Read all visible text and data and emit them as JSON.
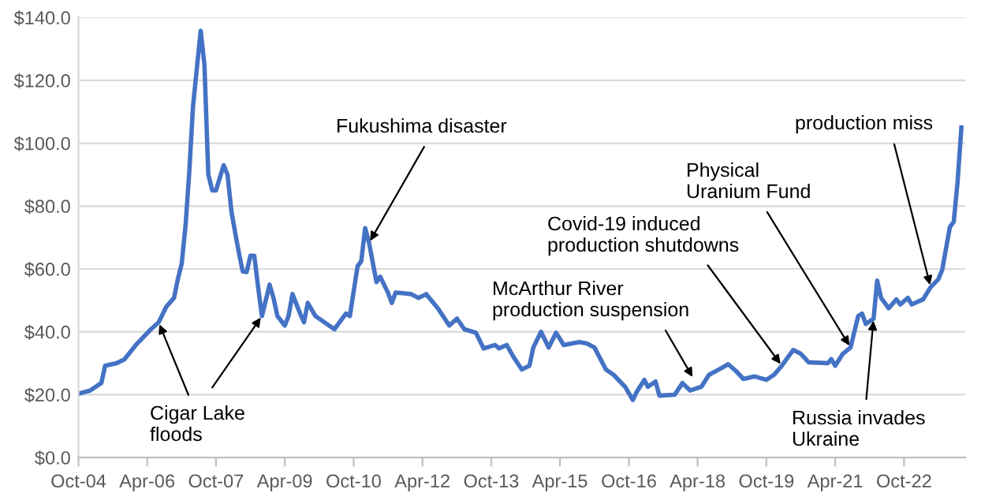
{
  "chart_data": {
    "type": "line",
    "x": [
      "2004-10",
      "2005-01",
      "2005-04",
      "2005-05",
      "2005-08",
      "2005-10",
      "2006-01",
      "2006-05",
      "2006-07",
      "2006-09",
      "2006-11",
      "2006-12",
      "2007-01",
      "2007-02",
      "2007-03",
      "2007-04",
      "2007-06",
      "2007-07",
      "2007-08",
      "2007-09",
      "2007-10",
      "2007-12",
      "2008-01",
      "2008-02",
      "2008-03",
      "2008-04",
      "2008-05",
      "2008-06",
      "2008-07",
      "2008-08",
      "2008-09",
      "2008-10",
      "2008-12",
      "2009-01",
      "2009-02",
      "2009-04",
      "2009-05",
      "2009-06",
      "2009-08",
      "2009-09",
      "2009-10",
      "2009-12",
      "2010-03",
      "2010-05",
      "2010-08",
      "2010-09",
      "2010-11",
      "2010-12",
      "2011-01",
      "2011-02",
      "2011-04",
      "2011-05",
      "2011-07",
      "2011-08",
      "2011-09",
      "2012-01",
      "2012-03",
      "2012-05",
      "2012-08",
      "2012-11",
      "2013-01",
      "2013-03",
      "2013-06",
      "2013-08",
      "2013-11",
      "2013-12",
      "2014-02",
      "2014-04",
      "2014-06",
      "2014-08",
      "2014-09",
      "2014-11",
      "2015-01",
      "2015-03",
      "2015-05",
      "2015-09",
      "2015-11",
      "2016-01",
      "2016-04",
      "2016-06",
      "2016-09",
      "2016-11",
      "2016-12",
      "2017-02",
      "2017-03",
      "2017-05",
      "2017-06",
      "2017-10",
      "2017-12",
      "2018-02",
      "2018-05",
      "2018-07",
      "2018-10",
      "2018-12",
      "2019-02",
      "2019-04",
      "2019-07",
      "2019-10",
      "2019-12",
      "2020-02",
      "2020-05",
      "2020-07",
      "2020-09",
      "2021-02",
      "2021-03",
      "2021-04",
      "2021-06",
      "2021-08",
      "2021-10",
      "2021-11",
      "2021-12",
      "2022-02",
      "2022-03",
      "2022-04",
      "2022-06",
      "2022-08",
      "2022-09",
      "2022-11",
      "2022-12",
      "2023-03",
      "2023-05",
      "2023-07",
      "2023-08",
      "2023-10",
      "2023-11",
      "2023-12",
      "2024-01"
    ],
    "series": [
      {
        "color": "#4472c4",
        "values": [
          20.3,
          21.3,
          23.7,
          29.2,
          30,
          31.2,
          35.8,
          40.8,
          43,
          48,
          50.8,
          56.7,
          61.7,
          74,
          90,
          111.7,
          135.8,
          125,
          90,
          85,
          85,
          93,
          90,
          78.3,
          71.7,
          65,
          59.2,
          59,
          64.2,
          64.2,
          54,
          45,
          55,
          50.8,
          45,
          42,
          45,
          52,
          45.8,
          43,
          49.2,
          45,
          42.5,
          40.8,
          45.8,
          45,
          60.8,
          62.5,
          73,
          68.3,
          55.8,
          57.5,
          52.5,
          49.2,
          52.5,
          52,
          50.8,
          52,
          47.5,
          42,
          44.2,
          40.8,
          39.7,
          34.7,
          35.8,
          34.7,
          35.8,
          31.7,
          28,
          29.2,
          35,
          40,
          35,
          39.7,
          35.8,
          36.7,
          36.3,
          35,
          28,
          26.3,
          22.5,
          18.3,
          20.8,
          24.7,
          22.5,
          24.2,
          19.7,
          20,
          23.7,
          21.3,
          22.5,
          26.3,
          28.3,
          29.7,
          27.5,
          25,
          25.8,
          24.7,
          26.3,
          29.2,
          34.2,
          33,
          30.3,
          30,
          31.3,
          29.2,
          33,
          35,
          45,
          45.8,
          42.5,
          44.2,
          56.3,
          50.8,
          47.5,
          50.3,
          48.7,
          50.8,
          48.7,
          50.3,
          54.2,
          56.7,
          59.7,
          73.3,
          75,
          87.5,
          105
        ]
      }
    ],
    "xlim": [
      "2004-10",
      "2024-02"
    ],
    "xticks": [
      {
        "value": "2004-10",
        "label": "Oct-04"
      },
      {
        "value": "2006-04",
        "label": "Apr-06"
      },
      {
        "value": "2007-10",
        "label": "Oct-07"
      },
      {
        "value": "2009-04",
        "label": "Apr-09"
      },
      {
        "value": "2010-10",
        "label": "Oct-10"
      },
      {
        "value": "2012-04",
        "label": "Apr-12"
      },
      {
        "value": "2013-10",
        "label": "Oct-13"
      },
      {
        "value": "2015-04",
        "label": "Apr-15"
      },
      {
        "value": "2016-10",
        "label": "Oct-16"
      },
      {
        "value": "2018-04",
        "label": "Apr-18"
      },
      {
        "value": "2019-10",
        "label": "Oct-19"
      },
      {
        "value": "2021-04",
        "label": "Apr-21"
      },
      {
        "value": "2022-10",
        "label": "Oct-22"
      }
    ],
    "ylim": [
      0,
      140
    ],
    "yticks": [
      {
        "value": 0,
        "label": "$0.0"
      },
      {
        "value": 20,
        "label": "$20.0"
      },
      {
        "value": 40,
        "label": "$40.0"
      },
      {
        "value": 60,
        "label": "$60.0"
      },
      {
        "value": 80,
        "label": "$80.0"
      },
      {
        "value": 100,
        "label": "$100.0"
      },
      {
        "value": 120,
        "label": "$120.0"
      },
      {
        "value": 140,
        "label": "$140.0"
      }
    ],
    "grid": "y",
    "legend": false,
    "annotations": [
      {
        "text": "Cigar Lake\nfloods",
        "x": "2006-07",
        "y": 43
      },
      {
        "text": "Fukushima disaster",
        "x": "2011-02",
        "y": 68.3
      },
      {
        "text": "McArthur River\nproduction suspension",
        "x": "2018-03",
        "y": 25
      },
      {
        "text": "Covid-19 induced\nproduction shutdowns",
        "x": "2020-02",
        "y": 29.2
      },
      {
        "text": "Physical\nUranium Fund",
        "x": "2021-08",
        "y": 35
      },
      {
        "text": "production miss",
        "x": "2023-05",
        "y": 54.2
      },
      {
        "text": "Russia invades\nUkraine",
        "x": "2022-02",
        "y": 44.2
      }
    ]
  }
}
